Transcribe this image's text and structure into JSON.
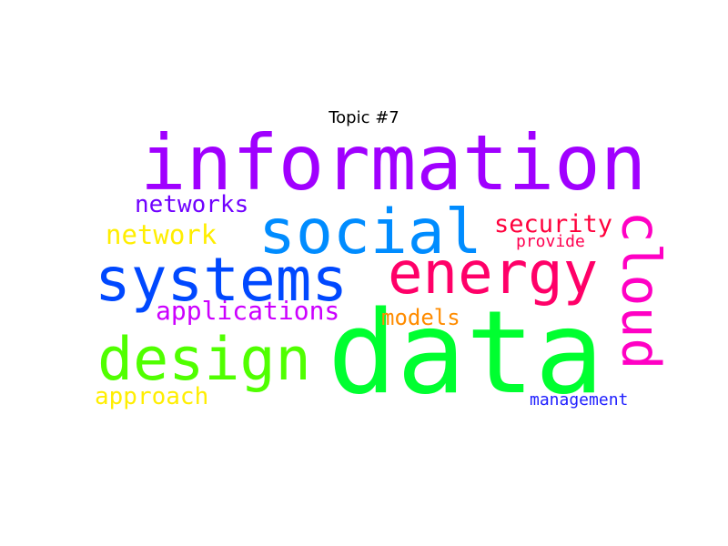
{
  "title": "Topic #7",
  "words": [
    {
      "text": "information",
      "color": "#a000ff"
    },
    {
      "text": "data",
      "color": "#00ff30"
    },
    {
      "text": "social",
      "color": "#008cff"
    },
    {
      "text": "systems",
      "color": "#0048ff"
    },
    {
      "text": "energy",
      "color": "#ff0068"
    },
    {
      "text": "design",
      "color": "#50ff00"
    },
    {
      "text": "cloud",
      "color": "#ff00c4"
    },
    {
      "text": "security",
      "color": "#ff003c"
    },
    {
      "text": "networks",
      "color": "#7000ff"
    },
    {
      "text": "network",
      "color": "#ffee00"
    },
    {
      "text": "applications",
      "color": "#cc00ff"
    },
    {
      "text": "models",
      "color": "#ff8c00"
    },
    {
      "text": "provide",
      "color": "#ff0050"
    },
    {
      "text": "approach",
      "color": "#ffee00"
    },
    {
      "text": "management",
      "color": "#2020ff"
    }
  ]
}
